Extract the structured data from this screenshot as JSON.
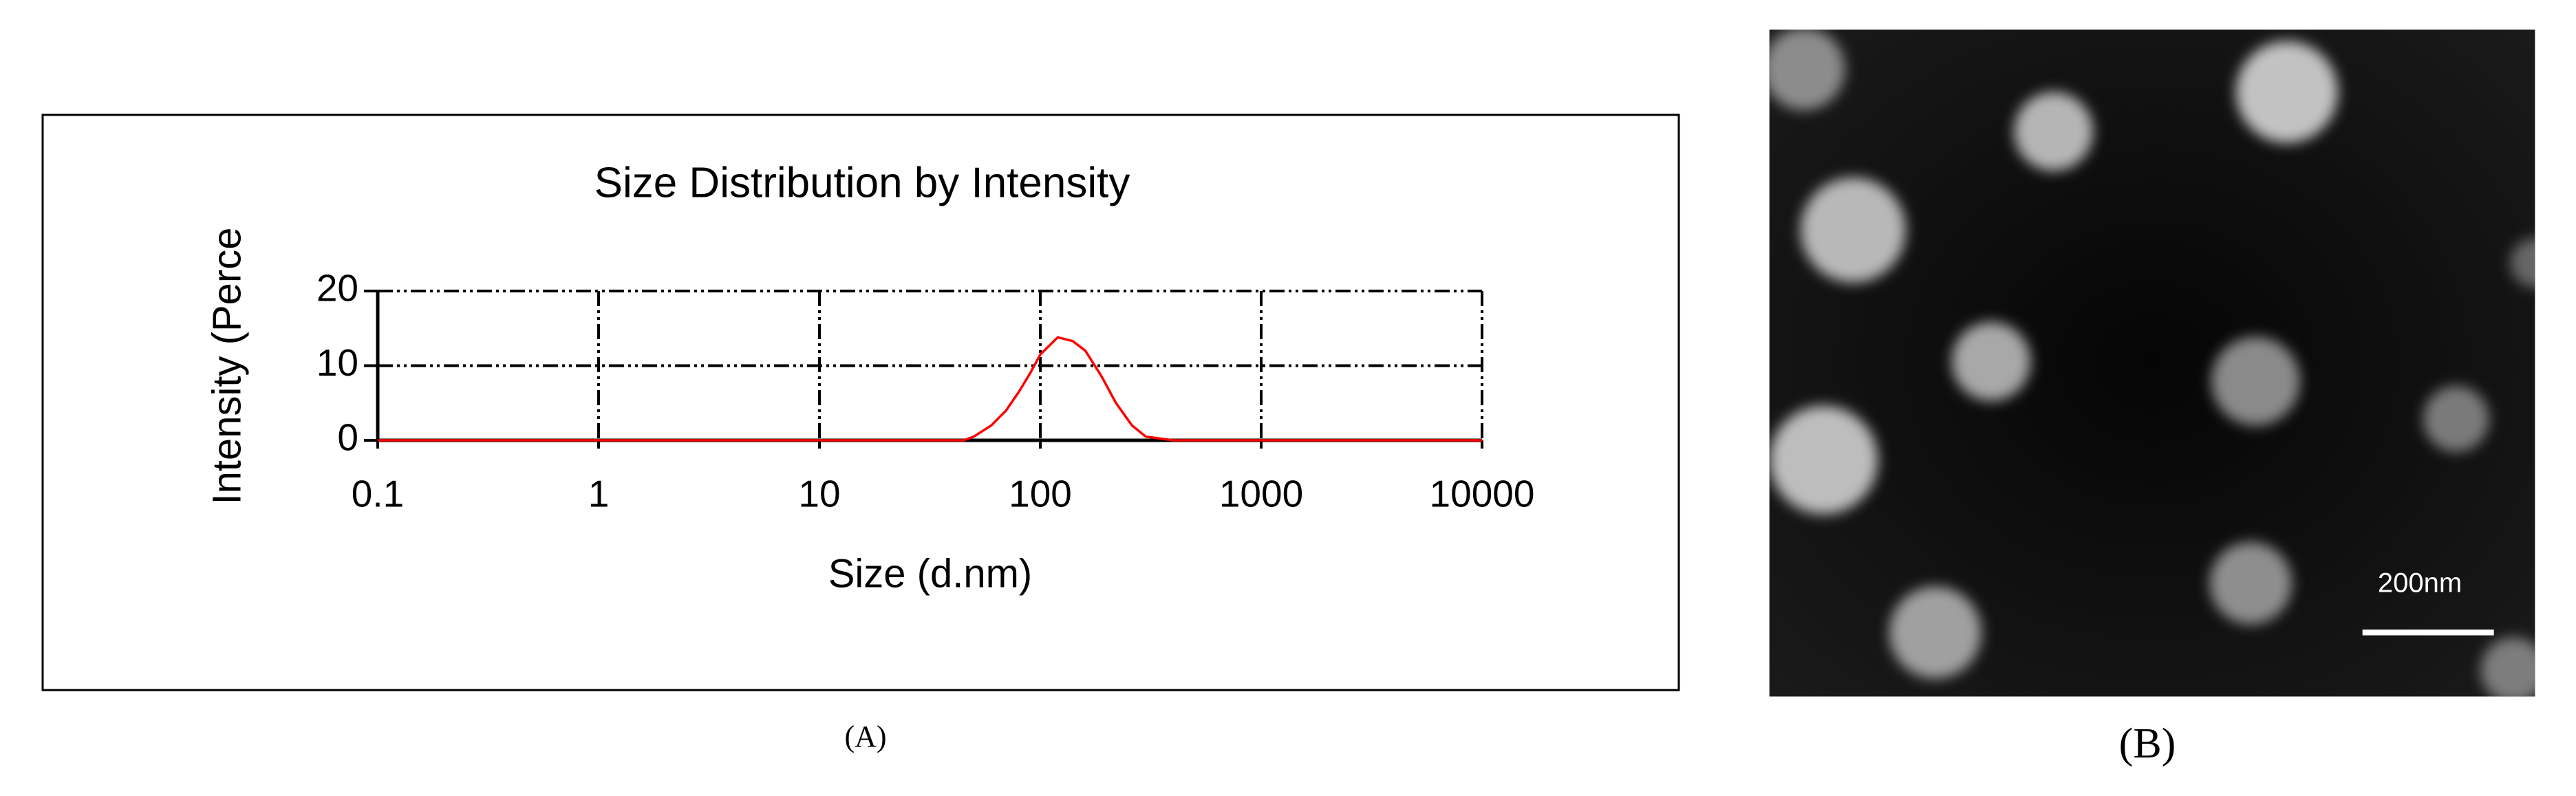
{
  "chart_data": {
    "type": "line",
    "title": "Size Distribution by Intensity",
    "xlabel": "Size (d.nm)",
    "ylabel": "Intensity (Perce",
    "xscale": "log",
    "grid": true,
    "color": "#ff0000",
    "x": [
      0.1,
      1,
      10,
      30,
      45,
      50,
      60,
      70,
      80,
      90,
      100,
      120,
      140,
      160,
      190,
      220,
      260,
      300,
      400,
      1000,
      10000
    ],
    "values": [
      0,
      0,
      0,
      0,
      0,
      0.5,
      2,
      4,
      6.5,
      9,
      11.5,
      13.8,
      13.3,
      12,
      8.5,
      5,
      2,
      0.5,
      0,
      0,
      0
    ],
    "xlim": [
      0.1,
      10000
    ],
    "xticks": [
      0.1,
      1,
      10,
      100,
      1000,
      10000
    ],
    "ylim": [
      0,
      20
    ],
    "yticks": [
      0,
      10,
      20
    ]
  },
  "panel_a_label": "(A)",
  "image_b": {
    "scale_bar": "200nm",
    "label": "(B)"
  }
}
